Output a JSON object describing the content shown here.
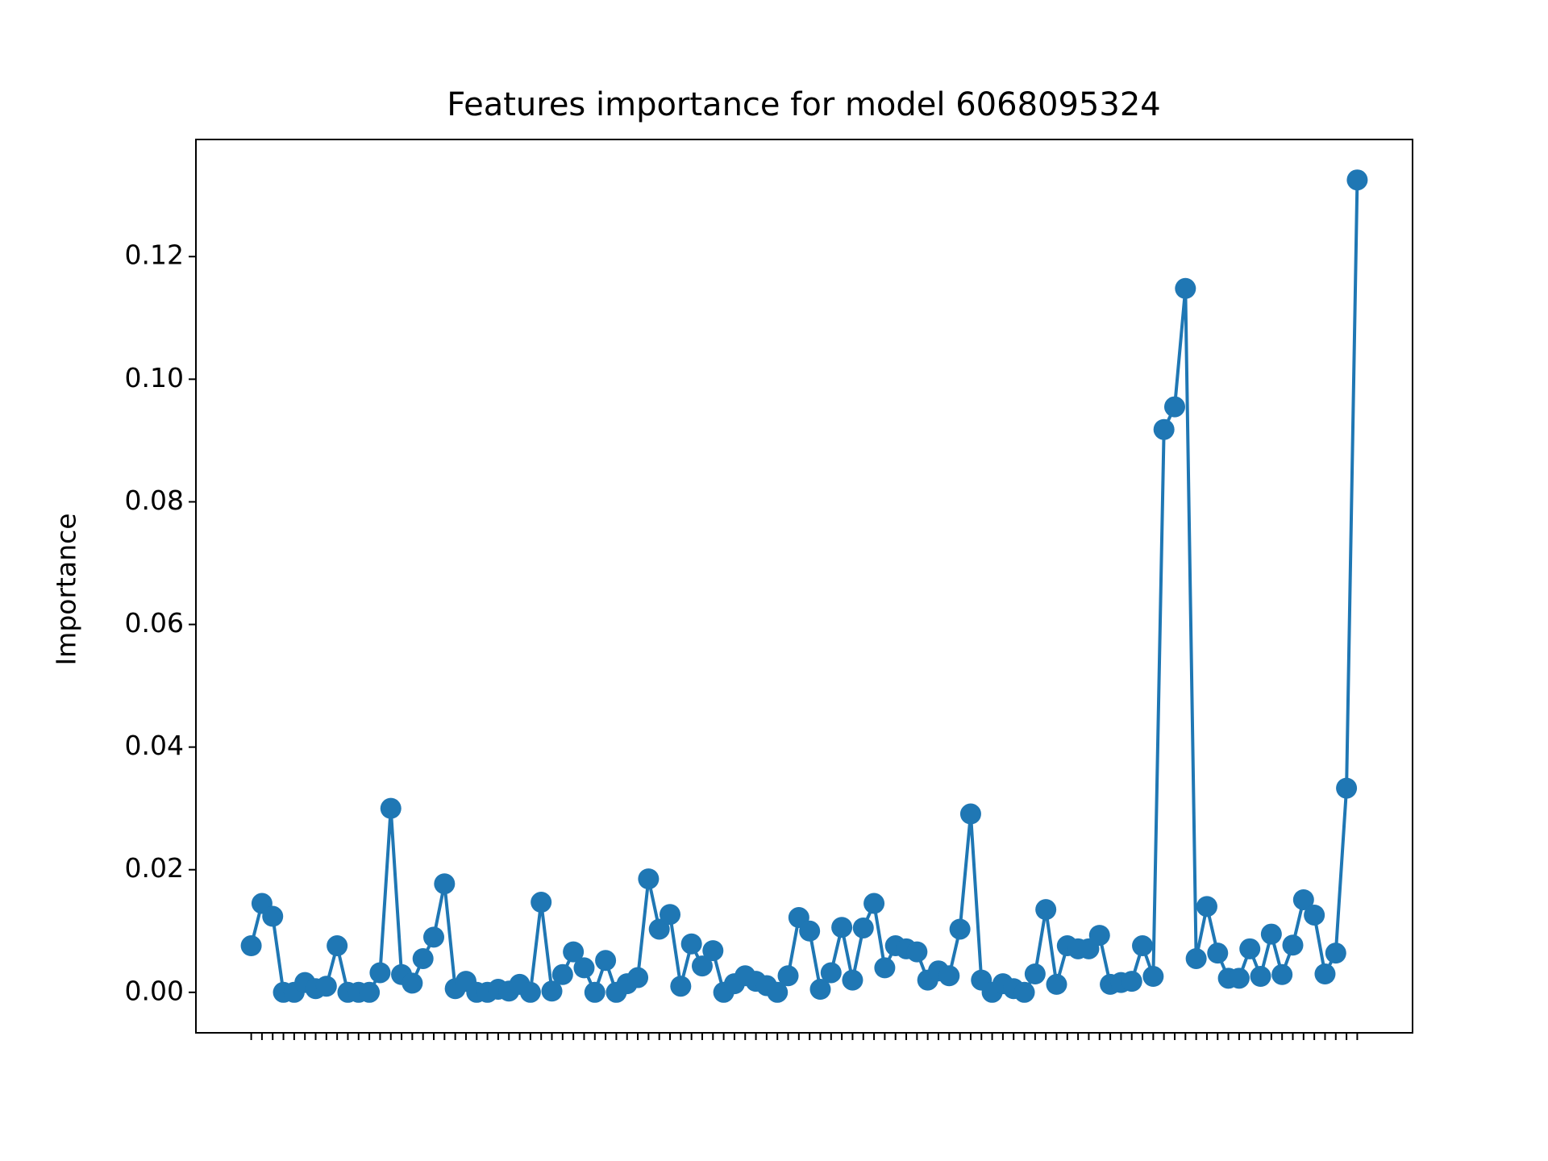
{
  "chart_data": {
    "type": "line",
    "title": "Features importance for model 6068095324",
    "y_label": "Importance",
    "categories": [
      null,
      null,
      null,
      null,
      null,
      null,
      null,
      null,
      null,
      null,
      null,
      null,
      null,
      null,
      null,
      null,
      null,
      null,
      null,
      null,
      null,
      null,
      null,
      null,
      null,
      null,
      null,
      null,
      null,
      null,
      null,
      null,
      null,
      null,
      null,
      null,
      null,
      null,
      null,
      null,
      null,
      null,
      null,
      null,
      null,
      null,
      null,
      null,
      null,
      null,
      null,
      null,
      null,
      null,
      null,
      null,
      null,
      null,
      null,
      null,
      null,
      null,
      null,
      null,
      null,
      null,
      null,
      null,
      null,
      null,
      null,
      null,
      null,
      null,
      null,
      null,
      null,
      null,
      null,
      null,
      null,
      null,
      null,
      null,
      null,
      null,
      null,
      null,
      null,
      null,
      null,
      null,
      null,
      null,
      null,
      null,
      null,
      null,
      null,
      null,
      null,
      null,
      null,
      null
    ],
    "values": [
      0.0076,
      0.0145,
      0.0124,
      0,
      0,
      0.0016,
      0.0006,
      0.001,
      0.0076,
      0,
      0,
      0,
      0.0032,
      0.03,
      0.0029,
      0.0015,
      0.0055,
      0.009,
      0.0177,
      0.0006,
      0.0018,
      0,
      0,
      0.0005,
      0.0002,
      0.0013,
      0,
      0.0147,
      0.0002,
      0.0029,
      0.0066,
      0.004,
      0,
      0.0052,
      0,
      0.0014,
      0.0024,
      0.0185,
      0.0103,
      0.0127,
      0.001,
      0.0079,
      0.0043,
      0.0068,
      0,
      0.0014,
      0.0027,
      0.0018,
      0.0011,
      0,
      0.0027,
      0.0122,
      0.01,
      0.0005,
      0.0032,
      0.0106,
      0.002,
      0.0105,
      0.0145,
      0.004,
      0.0076,
      0.0071,
      0.0066,
      0.002,
      0.0035,
      0.0027,
      0.0103,
      0.0291,
      0.002,
      0,
      0.0014,
      0.0006,
      0,
      0.003,
      0.0135,
      0.0013,
      0.0076,
      0.0071,
      0.0071,
      0.0093,
      0.0013,
      0.0016,
      0.0018,
      0.0076,
      0.0026,
      0.0918,
      0.0955,
      0.1148,
      0.0055,
      0.014,
      0.0064,
      0.0023,
      0.0023,
      0.0071,
      0.0026,
      0.0095,
      0.0029,
      0.0077,
      0.0151,
      0.0126,
      0.003,
      0.0064,
      0.0333,
      0.1325
    ],
    "color": "#1f77b4",
    "ylim": [
      -0.0066,
      0.1391
    ],
    "yticks": [
      {
        "value": 0,
        "label": "0.00"
      },
      {
        "value": 0.02,
        "label": "0.02"
      },
      {
        "value": 0.04,
        "label": "0.04"
      },
      {
        "value": 0.06,
        "label": "0.06"
      },
      {
        "value": 0.08,
        "label": "0.08"
      },
      {
        "value": 0.1,
        "label": "0.10"
      },
      {
        "value": 0.12,
        "label": "0.12"
      }
    ],
    "markers": true
  }
}
